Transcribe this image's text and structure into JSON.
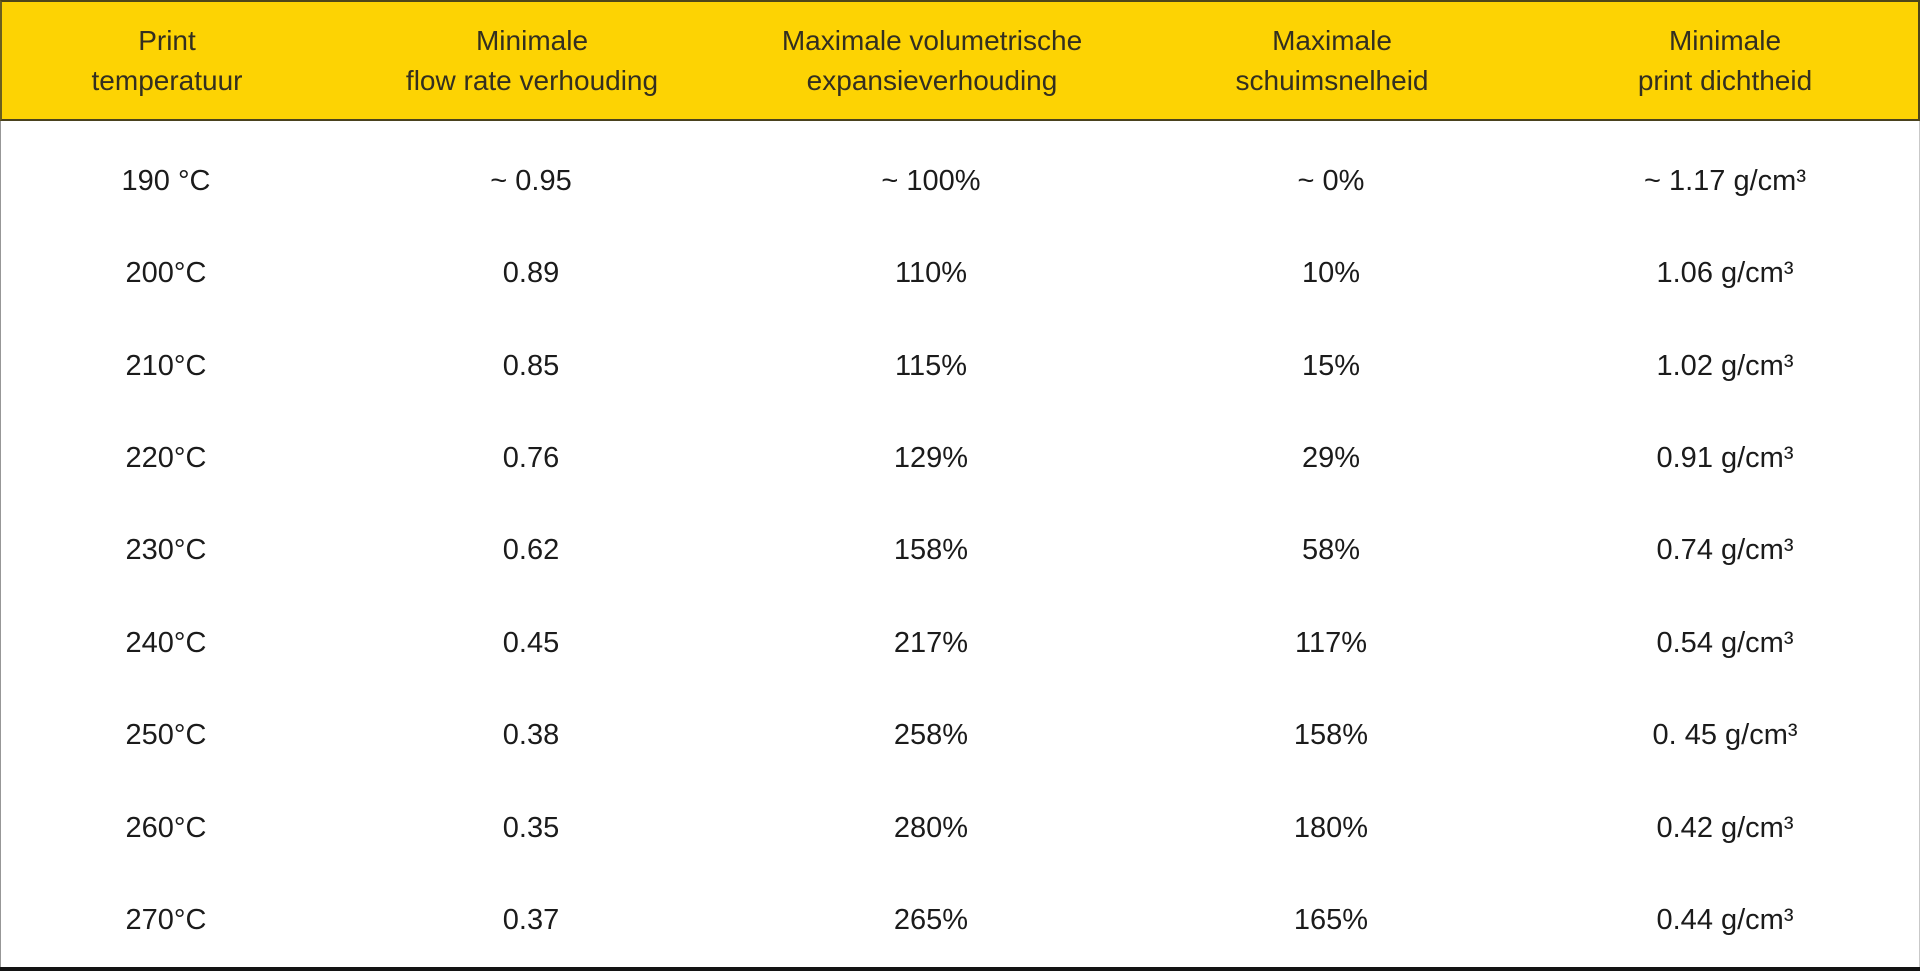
{
  "table": {
    "columns": [
      {
        "label": "Print\ntemperatuur"
      },
      {
        "label": "Minimale\nflow rate verhouding"
      },
      {
        "label": "Maximale volumetrische\nexpansieverhouding"
      },
      {
        "label": "Maximale\nschuimsnelheid"
      },
      {
        "label": "Minimale\nprint dichtheid"
      }
    ],
    "rows": [
      [
        "190 °C",
        "~ 0.95",
        "~ 100%",
        "~ 0%",
        "~ 1.17 g/cm³"
      ],
      [
        "200°C",
        "0.89",
        "110%",
        "10%",
        "1.06 g/cm³"
      ],
      [
        "210°C",
        "0.85",
        "115%",
        "15%",
        "1.02 g/cm³"
      ],
      [
        "220°C",
        "0.76",
        "129%",
        "29%",
        "0.91 g/cm³"
      ],
      [
        "230°C",
        "0.62",
        "158%",
        "58%",
        "0.74 g/cm³"
      ],
      [
        "240°C",
        "0.45",
        "217%",
        "117%",
        "0.54 g/cm³"
      ],
      [
        "250°C",
        "0.38",
        "258%",
        "158%",
        "0. 45 g/cm³"
      ],
      [
        "260°C",
        "0.35",
        "280%",
        "180%",
        "0.42 g/cm³"
      ],
      [
        "270°C",
        "0.37",
        "265%",
        "165%",
        "0.44 g/cm³"
      ]
    ]
  },
  "chart_data": {
    "type": "table",
    "title": "",
    "columns": [
      "Print temperatuur",
      "Minimale flow rate verhouding",
      "Maximale volumetrische expansieverhouding",
      "Maximale schuimsnelheid",
      "Minimale print dichtheid"
    ],
    "rows": [
      [
        "190 °C",
        "~ 0.95",
        "~ 100%",
        "~ 0%",
        "~ 1.17 g/cm³"
      ],
      [
        "200°C",
        "0.89",
        "110%",
        "10%",
        "1.06 g/cm³"
      ],
      [
        "210°C",
        "0.85",
        "115%",
        "15%",
        "1.02 g/cm³"
      ],
      [
        "220°C",
        "0.76",
        "129%",
        "29%",
        "0.91 g/cm³"
      ],
      [
        "230°C",
        "0.62",
        "158%",
        "58%",
        "0.74 g/cm³"
      ],
      [
        "240°C",
        "0.45",
        "217%",
        "117%",
        "0.54 g/cm³"
      ],
      [
        "250°C",
        "0.38",
        "258%",
        "158%",
        "0. 45 g/cm³"
      ],
      [
        "260°C",
        "0.35",
        "280%",
        "180%",
        "0.42 g/cm³"
      ],
      [
        "270°C",
        "0.37",
        "265%",
        "165%",
        "0.44 g/cm³"
      ]
    ],
    "layout": {
      "header_background": "#FDD303",
      "header_text_color": "#332F20",
      "body_text_color": "#1B1B1B",
      "grid": false
    }
  },
  "colors": {
    "header_bg": "#FDD303",
    "header_text": "#332F20",
    "body_text": "#1B1B1B",
    "bottom_border": "#131313"
  }
}
